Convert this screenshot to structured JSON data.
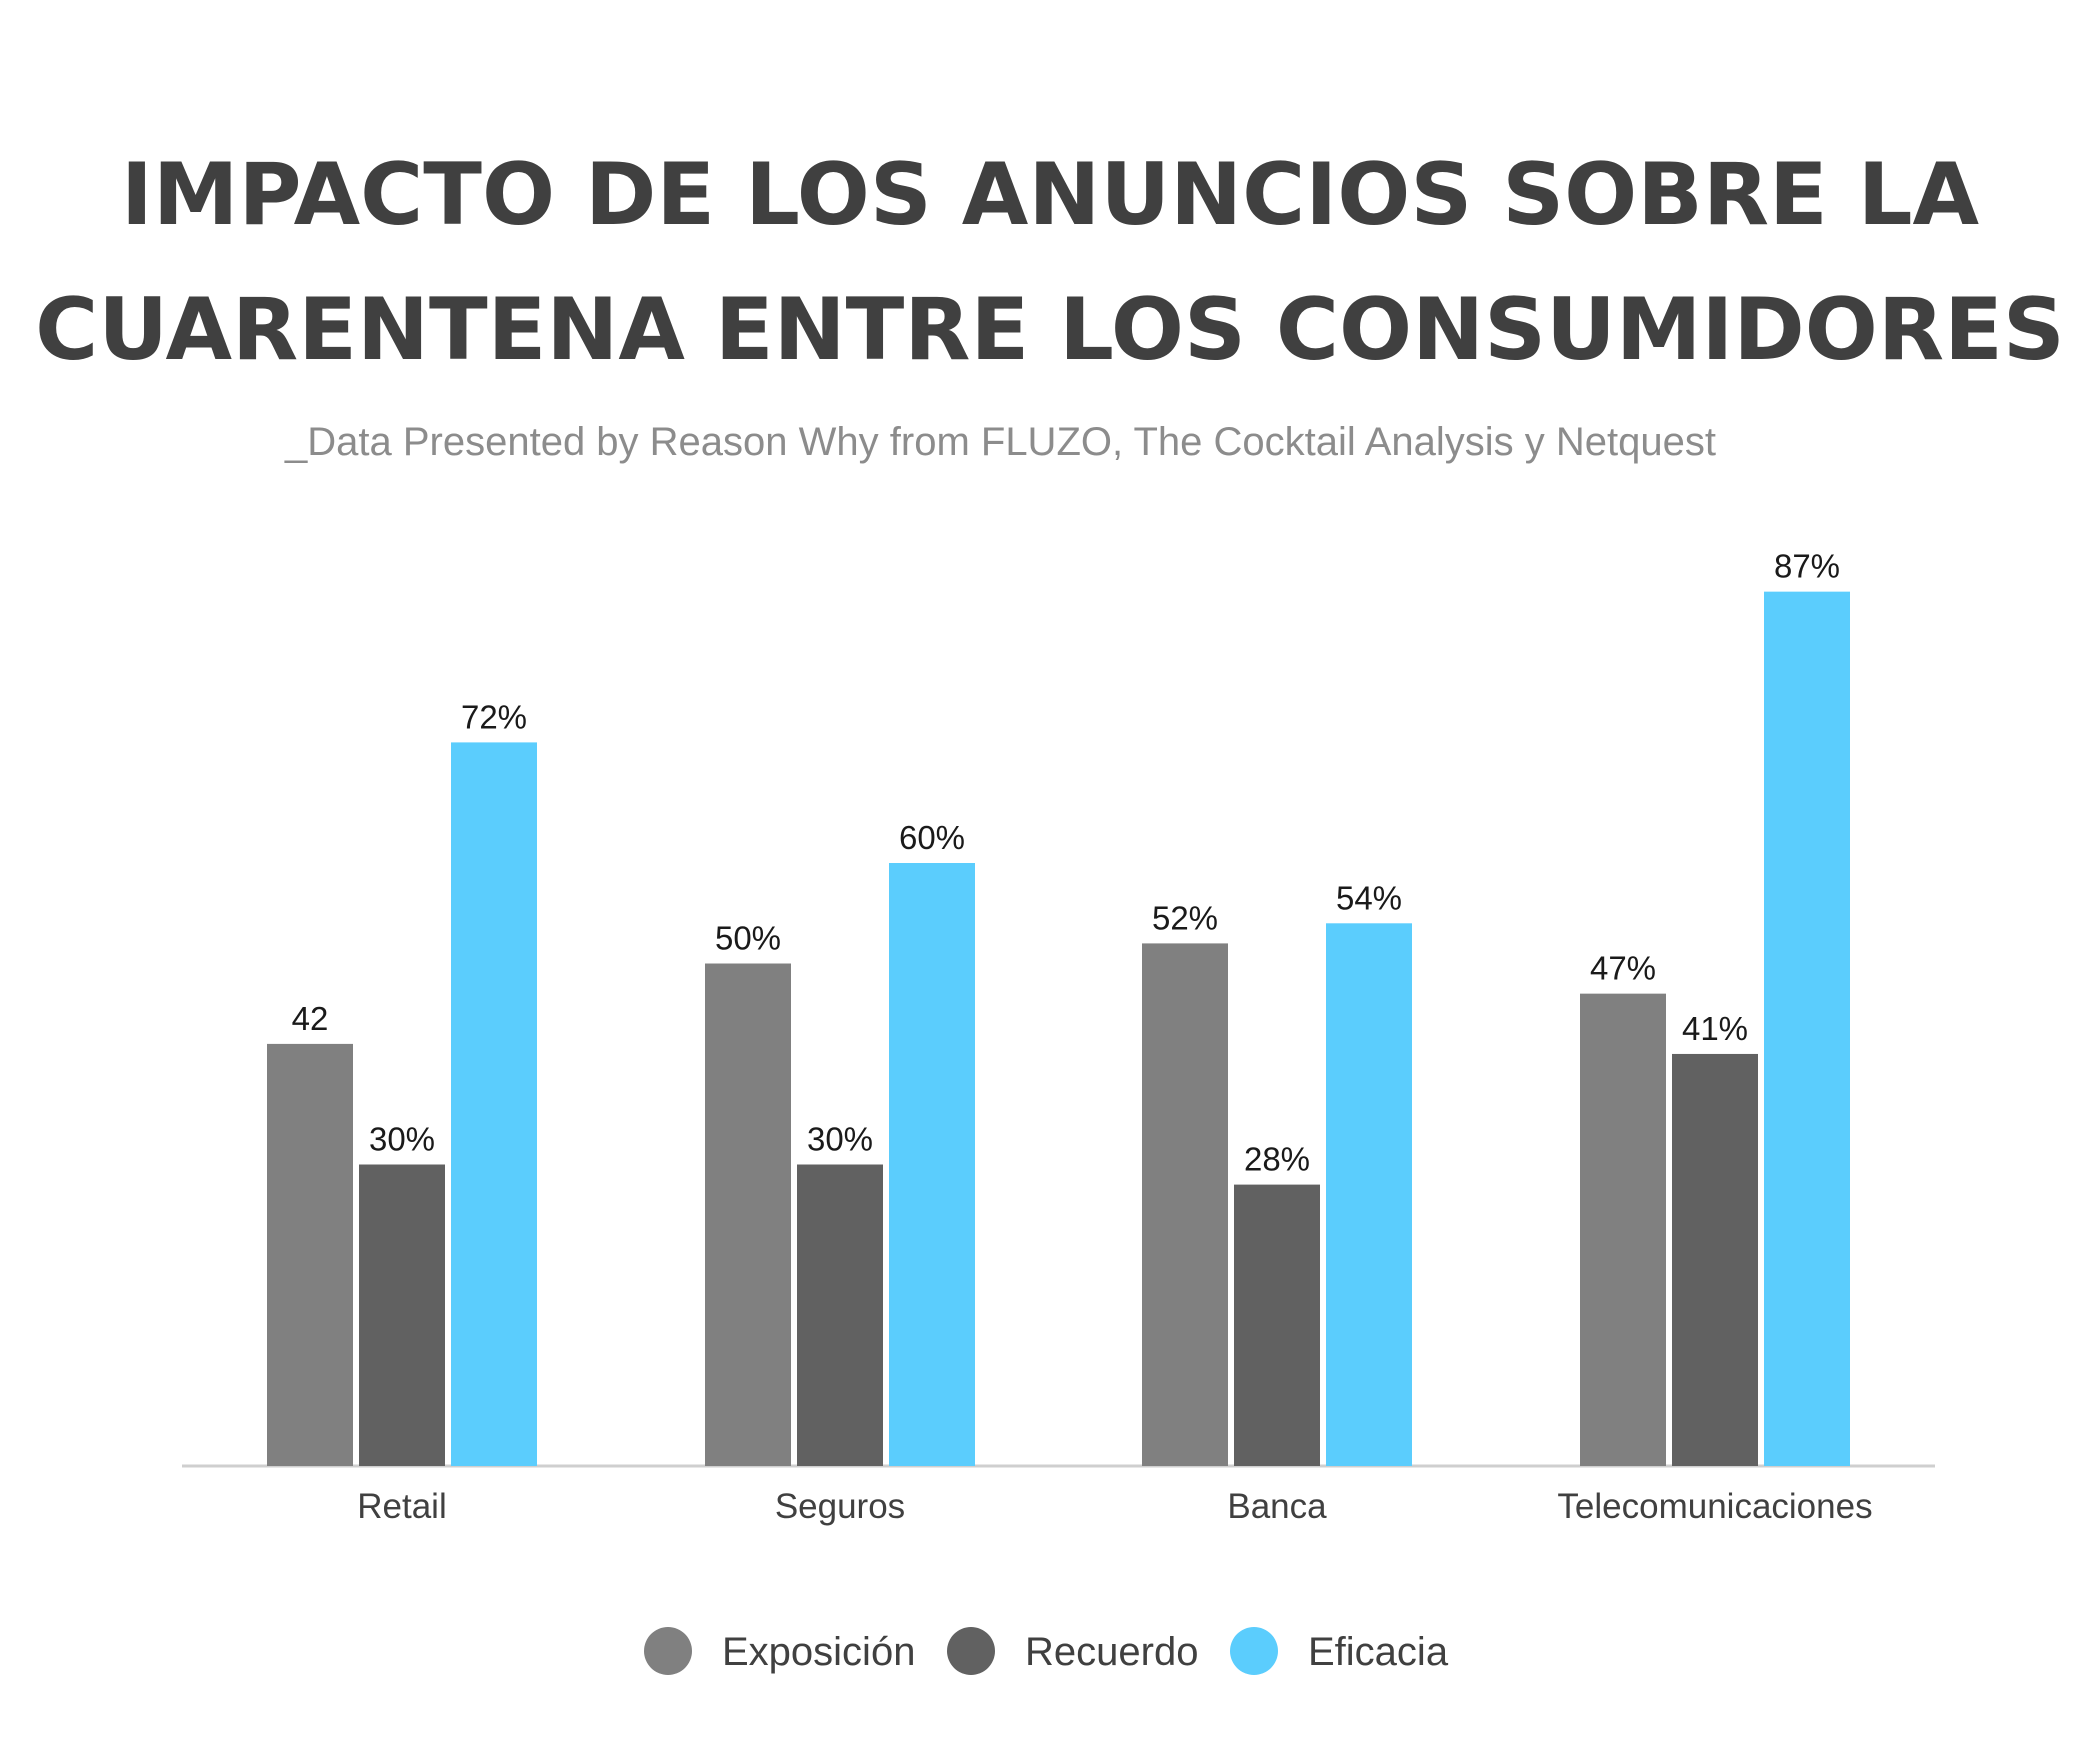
{
  "chart_data": {
    "type": "bar",
    "title_lines": [
      "IMPACTO DE LOS ANUNCIOS SOBRE LA",
      "CUARENTENA ENTRE LOS CONSUMIDORES"
    ],
    "subtitle": "_Data Presented by Reason Why from FLUZO, The Cocktail Analysis y Netquest",
    "categories": [
      "Retail",
      "Seguros",
      "Banca",
      "Telecomunicaciones"
    ],
    "series": [
      {
        "name": "Exposición",
        "color": "#808080",
        "values": [
          42,
          50,
          52,
          47
        ],
        "labels": [
          "42",
          "50%",
          "52%",
          "47%"
        ]
      },
      {
        "name": "Recuerdo",
        "color": "#616161",
        "values": [
          30,
          30,
          28,
          41
        ],
        "labels": [
          "30%",
          "30%",
          "28%",
          "41%"
        ]
      },
      {
        "name": "Eficacia",
        "color": "#5bcdfd",
        "values": [
          72,
          60,
          54,
          87
        ],
        "labels": [
          "72%",
          "60%",
          "54%",
          "87%"
        ]
      }
    ],
    "ylim": [
      0,
      100
    ],
    "grid": false,
    "legend_position": "bottom"
  }
}
